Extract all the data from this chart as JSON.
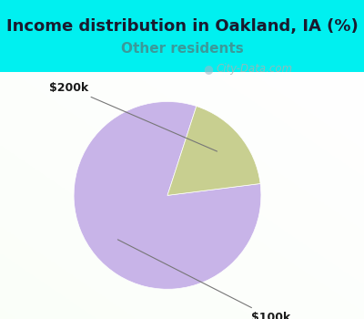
{
  "title": "Income distribution in Oakland, IA (%)",
  "subtitle": "Other residents",
  "title_color": "#1a1a2e",
  "subtitle_color": "#3a9a9a",
  "header_bg": "#00f0f0",
  "chart_bg_color": "#f0f8ee",
  "slices": [
    {
      "label": "$100k",
      "value": 82,
      "color": "#c8b4e8"
    },
    {
      "label": "$200k",
      "value": 18,
      "color": "#c8cf90"
    }
  ],
  "watermark": "City-Data.com",
  "title_fontsize": 13,
  "subtitle_fontsize": 11,
  "label_fontsize": 9,
  "startangle": 72
}
